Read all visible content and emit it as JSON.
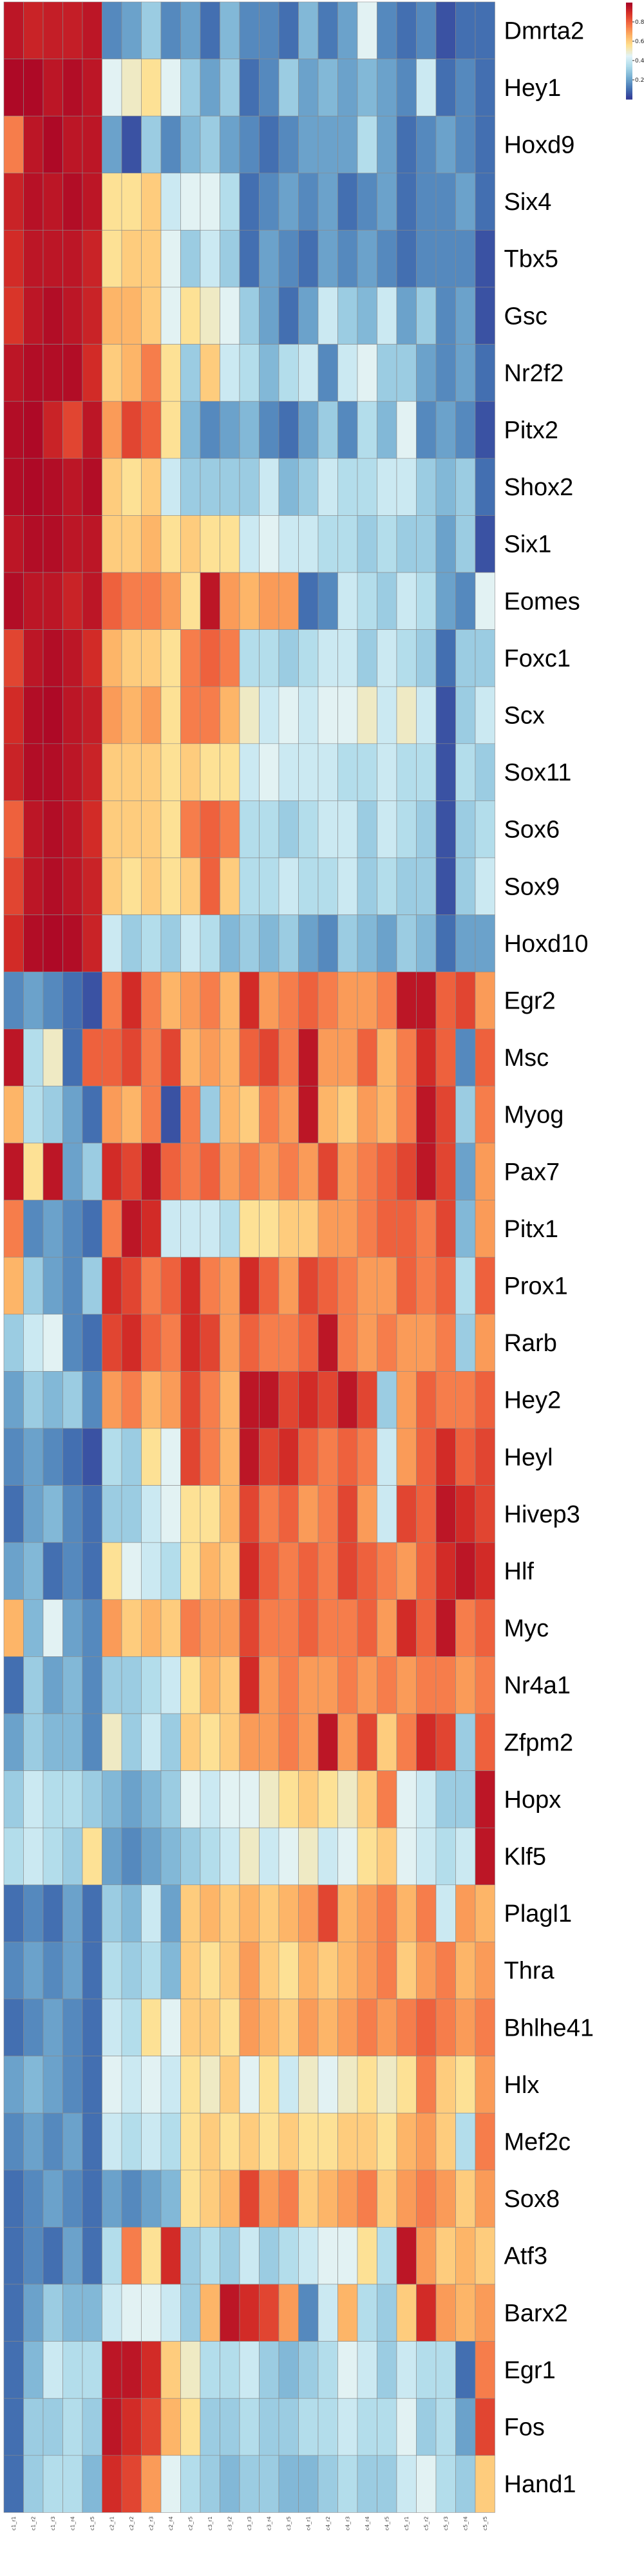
{
  "chart_data": {
    "type": "heatmap",
    "title": "",
    "xlabel": "",
    "ylabel": "",
    "rows": [
      "Dmrta2",
      "Hey1",
      "Hoxd9",
      "Six4",
      "Tbx5",
      "Gsc",
      "Nr2f2",
      "Pitx2",
      "Shox2",
      "Six1",
      "Eomes",
      "Foxc1",
      "Scx",
      "Sox11",
      "Sox6",
      "Sox9",
      "Hoxd10",
      "Egr2",
      "Msc",
      "Myog",
      "Pax7",
      "Pitx1",
      "Prox1",
      "Rarb",
      "Hey2",
      "Heyl",
      "Hivep3",
      "Hlf",
      "Myc",
      "Nr4a1",
      "Zfpm2",
      "Hopx",
      "Klf5",
      "Plagl1",
      "Thra",
      "Bhlhe41",
      "Hlx",
      "Mef2c",
      "Sox8",
      "Atf3",
      "Barx2",
      "Egr1",
      "Fos",
      "Hand1"
    ],
    "columns": [
      "c1_r1",
      "c1_r2",
      "c1_r3",
      "c1_r4",
      "c1_r5",
      "c2_r1",
      "c2_r2",
      "c2_r3",
      "c2_r4",
      "c2_r5",
      "c3_r1",
      "c3_r2",
      "c3_r3",
      "c3_r4",
      "c3_r5",
      "c4_r1",
      "c4_r2",
      "c4_r3",
      "c4_r4",
      "c4_r5",
      "c5_r1",
      "c5_r2",
      "c5_r3",
      "c5_r4",
      "c5_r5"
    ],
    "color_scale": {
      "min": 0,
      "max": 1,
      "ticks": [
        0.2,
        0.4,
        0.6,
        0.8
      ],
      "colors": [
        "#313695",
        "#4575b4",
        "#74add1",
        "#abd9e9",
        "#e0f3f8",
        "#fee090",
        "#fdae61",
        "#f46d43",
        "#d73027",
        "#a50026"
      ]
    },
    "values": [
      [
        0.95,
        0.92,
        0.93,
        0.93,
        0.95,
        0.15,
        0.2,
        0.3,
        0.15,
        0.2,
        0.1,
        0.25,
        0.15,
        0.15,
        0.1,
        0.25,
        0.12,
        0.2,
        0.45,
        0.15,
        0.1,
        0.15,
        0.05,
        0.1,
        0.1
      ],
      [
        0.98,
        0.98,
        0.95,
        0.97,
        0.95,
        0.45,
        0.5,
        0.55,
        0.45,
        0.3,
        0.2,
        0.3,
        0.1,
        0.15,
        0.3,
        0.2,
        0.25,
        0.2,
        0.25,
        0.2,
        0.15,
        0.4,
        0.1,
        0.15,
        0.1
      ],
      [
        0.75,
        0.95,
        0.98,
        0.95,
        0.95,
        0.2,
        0.05,
        0.3,
        0.15,
        0.25,
        0.3,
        0.2,
        0.15,
        0.1,
        0.15,
        0.2,
        0.2,
        0.2,
        0.35,
        0.2,
        0.1,
        0.15,
        0.2,
        0.15,
        0.1
      ],
      [
        0.92,
        0.96,
        0.95,
        0.97,
        0.95,
        0.55,
        0.55,
        0.6,
        0.4,
        0.45,
        0.45,
        0.35,
        0.1,
        0.15,
        0.2,
        0.15,
        0.2,
        0.1,
        0.15,
        0.2,
        0.1,
        0.15,
        0.15,
        0.2,
        0.1
      ],
      [
        0.9,
        0.95,
        0.95,
        0.95,
        0.92,
        0.55,
        0.6,
        0.6,
        0.45,
        0.3,
        0.4,
        0.3,
        0.1,
        0.2,
        0.15,
        0.1,
        0.2,
        0.15,
        0.2,
        0.15,
        0.1,
        0.15,
        0.15,
        0.15,
        0.05
      ],
      [
        0.88,
        0.95,
        0.97,
        0.95,
        0.92,
        0.65,
        0.65,
        0.6,
        0.45,
        0.55,
        0.5,
        0.45,
        0.3,
        0.2,
        0.1,
        0.2,
        0.4,
        0.3,
        0.25,
        0.4,
        0.2,
        0.3,
        0.15,
        0.2,
        0.05
      ],
      [
        0.95,
        0.97,
        0.97,
        0.97,
        0.9,
        0.6,
        0.65,
        0.75,
        0.55,
        0.3,
        0.6,
        0.4,
        0.35,
        0.25,
        0.35,
        0.4,
        0.15,
        0.4,
        0.45,
        0.3,
        0.3,
        0.2,
        0.15,
        0.2,
        0.1
      ],
      [
        0.97,
        0.98,
        0.92,
        0.85,
        0.95,
        0.7,
        0.85,
        0.8,
        0.55,
        0.25,
        0.15,
        0.2,
        0.25,
        0.15,
        0.1,
        0.2,
        0.3,
        0.15,
        0.35,
        0.25,
        0.45,
        0.15,
        0.2,
        0.15,
        0.05
      ],
      [
        0.97,
        0.98,
        0.97,
        0.95,
        0.97,
        0.6,
        0.55,
        0.6,
        0.4,
        0.3,
        0.3,
        0.3,
        0.3,
        0.4,
        0.25,
        0.3,
        0.4,
        0.35,
        0.35,
        0.4,
        0.4,
        0.3,
        0.25,
        0.3,
        0.1
      ],
      [
        0.95,
        0.97,
        0.97,
        0.95,
        0.95,
        0.6,
        0.6,
        0.65,
        0.55,
        0.6,
        0.55,
        0.55,
        0.4,
        0.45,
        0.4,
        0.4,
        0.35,
        0.35,
        0.3,
        0.35,
        0.3,
        0.3,
        0.2,
        0.3,
        0.05
      ],
      [
        0.97,
        0.95,
        0.95,
        0.92,
        0.95,
        0.8,
        0.75,
        0.75,
        0.7,
        0.55,
        0.95,
        0.7,
        0.65,
        0.7,
        0.7,
        0.1,
        0.15,
        0.4,
        0.35,
        0.3,
        0.4,
        0.35,
        0.2,
        0.15,
        0.45
      ],
      [
        0.85,
        0.95,
        0.97,
        0.95,
        0.9,
        0.65,
        0.6,
        0.6,
        0.55,
        0.75,
        0.8,
        0.75,
        0.35,
        0.35,
        0.3,
        0.35,
        0.4,
        0.4,
        0.3,
        0.4,
        0.35,
        0.3,
        0.1,
        0.3,
        0.3
      ],
      [
        0.9,
        0.97,
        0.98,
        0.95,
        0.93,
        0.7,
        0.65,
        0.7,
        0.55,
        0.75,
        0.75,
        0.65,
        0.5,
        0.4,
        0.45,
        0.4,
        0.45,
        0.45,
        0.5,
        0.4,
        0.5,
        0.4,
        0.05,
        0.3,
        0.4
      ],
      [
        0.92,
        0.97,
        0.97,
        0.95,
        0.92,
        0.6,
        0.6,
        0.6,
        0.55,
        0.6,
        0.55,
        0.55,
        0.4,
        0.45,
        0.4,
        0.4,
        0.4,
        0.35,
        0.35,
        0.4,
        0.35,
        0.35,
        0.05,
        0.35,
        0.3
      ],
      [
        0.8,
        0.95,
        0.97,
        0.95,
        0.9,
        0.6,
        0.6,
        0.6,
        0.55,
        0.75,
        0.8,
        0.75,
        0.35,
        0.35,
        0.3,
        0.35,
        0.4,
        0.4,
        0.3,
        0.4,
        0.35,
        0.3,
        0.05,
        0.3,
        0.35
      ],
      [
        0.85,
        0.95,
        0.97,
        0.95,
        0.92,
        0.6,
        0.55,
        0.6,
        0.55,
        0.6,
        0.8,
        0.6,
        0.35,
        0.35,
        0.4,
        0.35,
        0.35,
        0.4,
        0.3,
        0.35,
        0.3,
        0.3,
        0.05,
        0.3,
        0.4
      ],
      [
        0.9,
        0.97,
        0.98,
        0.97,
        0.92,
        0.4,
        0.3,
        0.35,
        0.3,
        0.4,
        0.35,
        0.25,
        0.3,
        0.25,
        0.3,
        0.2,
        0.15,
        0.3,
        0.25,
        0.2,
        0.3,
        0.25,
        0.1,
        0.2,
        0.2
      ],
      [
        0.15,
        0.2,
        0.15,
        0.1,
        0.05,
        0.75,
        0.9,
        0.75,
        0.65,
        0.7,
        0.75,
        0.65,
        0.9,
        0.7,
        0.75,
        0.8,
        0.75,
        0.7,
        0.7,
        0.75,
        0.95,
        0.95,
        0.8,
        0.85,
        0.7
      ],
      [
        0.95,
        0.35,
        0.5,
        0.1,
        0.8,
        0.8,
        0.85,
        0.75,
        0.85,
        0.65,
        0.7,
        0.65,
        0.8,
        0.85,
        0.75,
        0.95,
        0.7,
        0.7,
        0.8,
        0.65,
        0.75,
        0.9,
        0.8,
        0.15,
        0.8
      ],
      [
        0.65,
        0.35,
        0.3,
        0.2,
        0.1,
        0.7,
        0.65,
        0.75,
        0.05,
        0.75,
        0.3,
        0.65,
        0.6,
        0.75,
        0.7,
        0.95,
        0.65,
        0.6,
        0.7,
        0.65,
        0.75,
        0.95,
        0.85,
        0.3,
        0.75
      ],
      [
        0.95,
        0.55,
        0.95,
        0.2,
        0.3,
        0.9,
        0.85,
        0.95,
        0.8,
        0.75,
        0.8,
        0.7,
        0.75,
        0.7,
        0.75,
        0.7,
        0.85,
        0.7,
        0.75,
        0.8,
        0.85,
        0.95,
        0.85,
        0.2,
        0.7
      ],
      [
        0.75,
        0.15,
        0.2,
        0.15,
        0.1,
        0.75,
        0.95,
        0.9,
        0.4,
        0.4,
        0.4,
        0.35,
        0.55,
        0.55,
        0.6,
        0.6,
        0.7,
        0.7,
        0.75,
        0.8,
        0.8,
        0.75,
        0.85,
        0.25,
        0.7
      ],
      [
        0.65,
        0.3,
        0.2,
        0.15,
        0.3,
        0.9,
        0.85,
        0.75,
        0.8,
        0.9,
        0.75,
        0.7,
        0.9,
        0.8,
        0.7,
        0.85,
        0.8,
        0.75,
        0.7,
        0.7,
        0.8,
        0.75,
        0.8,
        0.35,
        0.8
      ],
      [
        0.3,
        0.4,
        0.45,
        0.15,
        0.1,
        0.85,
        0.9,
        0.8,
        0.75,
        0.9,
        0.85,
        0.7,
        0.8,
        0.75,
        0.75,
        0.8,
        0.95,
        0.75,
        0.7,
        0.75,
        0.7,
        0.7,
        0.75,
        0.3,
        0.7
      ],
      [
        0.2,
        0.3,
        0.25,
        0.3,
        0.15,
        0.7,
        0.75,
        0.65,
        0.7,
        0.85,
        0.75,
        0.65,
        0.95,
        0.95,
        0.85,
        0.9,
        0.85,
        0.95,
        0.85,
        0.3,
        0.7,
        0.8,
        0.75,
        0.75,
        0.8
      ],
      [
        0.15,
        0.2,
        0.15,
        0.1,
        0.05,
        0.35,
        0.3,
        0.55,
        0.45,
        0.85,
        0.75,
        0.65,
        0.95,
        0.85,
        0.9,
        0.8,
        0.75,
        0.8,
        0.75,
        0.4,
        0.7,
        0.8,
        0.9,
        0.8,
        0.85
      ],
      [
        0.1,
        0.2,
        0.25,
        0.15,
        0.1,
        0.3,
        0.3,
        0.4,
        0.45,
        0.55,
        0.55,
        0.65,
        0.85,
        0.75,
        0.8,
        0.7,
        0.75,
        0.85,
        0.7,
        0.4,
        0.85,
        0.8,
        0.95,
        0.9,
        0.85
      ],
      [
        0.2,
        0.25,
        0.1,
        0.15,
        0.1,
        0.55,
        0.45,
        0.4,
        0.35,
        0.55,
        0.65,
        0.6,
        0.9,
        0.8,
        0.75,
        0.8,
        0.75,
        0.85,
        0.8,
        0.75,
        0.7,
        0.8,
        0.9,
        0.95,
        0.9
      ],
      [
        0.65,
        0.25,
        0.45,
        0.2,
        0.15,
        0.7,
        0.6,
        0.65,
        0.6,
        0.75,
        0.7,
        0.7,
        0.85,
        0.75,
        0.75,
        0.8,
        0.75,
        0.75,
        0.8,
        0.7,
        0.9,
        0.8,
        0.95,
        0.75,
        0.8
      ],
      [
        0.1,
        0.3,
        0.2,
        0.25,
        0.15,
        0.3,
        0.3,
        0.35,
        0.4,
        0.55,
        0.65,
        0.6,
        0.9,
        0.7,
        0.75,
        0.7,
        0.7,
        0.75,
        0.7,
        0.75,
        0.7,
        0.75,
        0.75,
        0.7,
        0.75
      ],
      [
        0.2,
        0.3,
        0.25,
        0.25,
        0.15,
        0.5,
        0.3,
        0.4,
        0.3,
        0.6,
        0.55,
        0.6,
        0.7,
        0.7,
        0.75,
        0.7,
        0.95,
        0.7,
        0.85,
        0.6,
        0.75,
        0.9,
        0.85,
        0.3,
        0.8
      ],
      [
        0.3,
        0.4,
        0.35,
        0.35,
        0.3,
        0.25,
        0.2,
        0.25,
        0.3,
        0.45,
        0.4,
        0.45,
        0.45,
        0.5,
        0.55,
        0.6,
        0.55,
        0.5,
        0.6,
        0.75,
        0.45,
        0.4,
        0.3,
        0.3,
        0.95
      ],
      [
        0.35,
        0.4,
        0.35,
        0.3,
        0.55,
        0.2,
        0.15,
        0.2,
        0.25,
        0.3,
        0.35,
        0.4,
        0.5,
        0.4,
        0.45,
        0.5,
        0.4,
        0.45,
        0.55,
        0.6,
        0.45,
        0.4,
        0.35,
        0.4,
        0.95
      ],
      [
        0.1,
        0.15,
        0.1,
        0.2,
        0.1,
        0.3,
        0.25,
        0.4,
        0.2,
        0.6,
        0.65,
        0.6,
        0.65,
        0.6,
        0.65,
        0.7,
        0.85,
        0.65,
        0.7,
        0.75,
        0.65,
        0.75,
        0.4,
        0.7,
        0.65
      ],
      [
        0.15,
        0.2,
        0.15,
        0.2,
        0.1,
        0.35,
        0.3,
        0.35,
        0.25,
        0.6,
        0.55,
        0.6,
        0.7,
        0.6,
        0.55,
        0.65,
        0.6,
        0.65,
        0.7,
        0.75,
        0.6,
        0.7,
        0.75,
        0.65,
        0.7
      ],
      [
        0.1,
        0.15,
        0.2,
        0.15,
        0.1,
        0.4,
        0.35,
        0.55,
        0.45,
        0.6,
        0.6,
        0.55,
        0.7,
        0.65,
        0.6,
        0.7,
        0.65,
        0.7,
        0.75,
        0.7,
        0.75,
        0.8,
        0.75,
        0.7,
        0.75
      ],
      [
        0.2,
        0.25,
        0.2,
        0.15,
        0.1,
        0.45,
        0.4,
        0.45,
        0.4,
        0.55,
        0.5,
        0.6,
        0.45,
        0.55,
        0.4,
        0.5,
        0.45,
        0.5,
        0.55,
        0.5,
        0.55,
        0.75,
        0.6,
        0.55,
        0.7
      ],
      [
        0.15,
        0.2,
        0.15,
        0.2,
        0.1,
        0.4,
        0.35,
        0.4,
        0.35,
        0.55,
        0.6,
        0.55,
        0.6,
        0.55,
        0.6,
        0.55,
        0.55,
        0.6,
        0.6,
        0.55,
        0.65,
        0.7,
        0.6,
        0.35,
        0.75
      ],
      [
        0.1,
        0.15,
        0.2,
        0.15,
        0.1,
        0.2,
        0.15,
        0.2,
        0.25,
        0.55,
        0.6,
        0.65,
        0.85,
        0.7,
        0.75,
        0.6,
        0.65,
        0.7,
        0.75,
        0.6,
        0.7,
        0.75,
        0.7,
        0.6,
        0.7
      ],
      [
        0.1,
        0.15,
        0.1,
        0.2,
        0.1,
        0.35,
        0.75,
        0.55,
        0.9,
        0.3,
        0.35,
        0.3,
        0.4,
        0.3,
        0.35,
        0.4,
        0.45,
        0.45,
        0.55,
        0.35,
        0.95,
        0.7,
        0.6,
        0.65,
        0.6
      ],
      [
        0.1,
        0.2,
        0.3,
        0.25,
        0.25,
        0.4,
        0.45,
        0.45,
        0.4,
        0.3,
        0.65,
        0.95,
        0.9,
        0.85,
        0.7,
        0.15,
        0.4,
        0.65,
        0.35,
        0.3,
        0.6,
        0.9,
        0.7,
        0.65,
        0.7
      ],
      [
        0.1,
        0.25,
        0.4,
        0.35,
        0.35,
        0.95,
        0.95,
        0.9,
        0.6,
        0.5,
        0.35,
        0.35,
        0.4,
        0.3,
        0.25,
        0.3,
        0.35,
        0.45,
        0.4,
        0.3,
        0.4,
        0.35,
        0.35,
        0.1,
        0.75
      ],
      [
        0.1,
        0.3,
        0.3,
        0.35,
        0.3,
        0.95,
        0.9,
        0.85,
        0.65,
        0.55,
        0.3,
        0.3,
        0.35,
        0.3,
        0.3,
        0.35,
        0.35,
        0.4,
        0.35,
        0.35,
        0.45,
        0.3,
        0.35,
        0.2,
        0.85
      ],
      [
        0.1,
        0.3,
        0.35,
        0.35,
        0.25,
        0.9,
        0.85,
        0.7,
        0.45,
        0.35,
        0.3,
        0.25,
        0.3,
        0.3,
        0.25,
        0.25,
        0.3,
        0.35,
        0.3,
        0.3,
        0.4,
        0.45,
        0.35,
        0.3,
        0.6
      ]
    ]
  }
}
